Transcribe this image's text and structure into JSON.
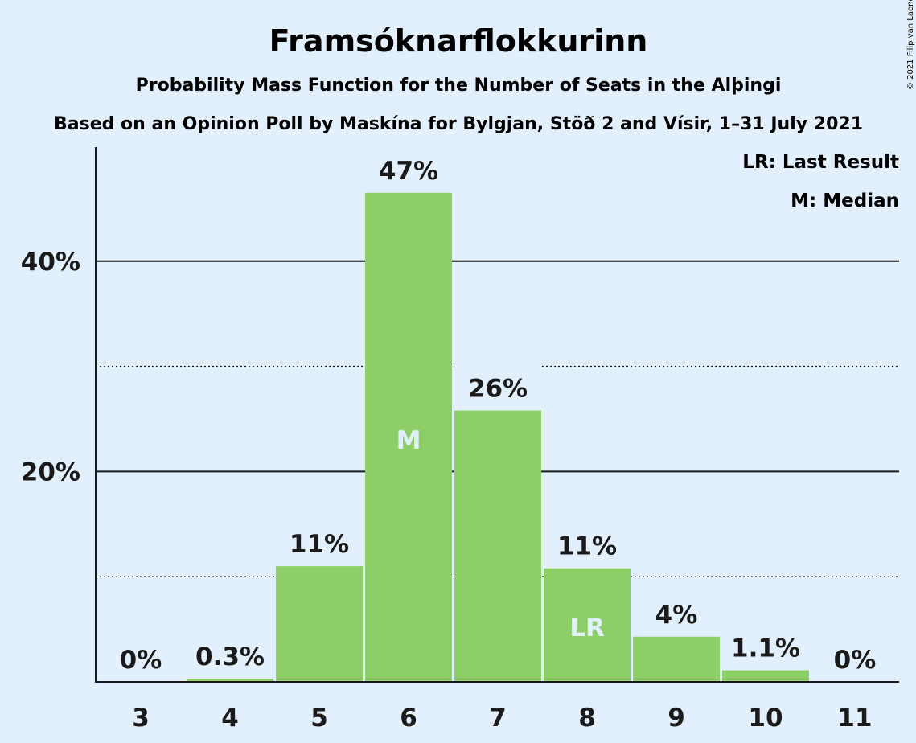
{
  "chart_data": {
    "type": "bar",
    "title": "Framsóknarflokkurinn",
    "subtitle": "Probability Mass Function for the Number of Seats in the Alþingi",
    "subtitle2": "Based on an Opinion Poll by Maskína for Bylgjan, Stöð 2 and Vísir, 1–31 July 2021",
    "copyright": "© 2021 Filip van Laenen",
    "legend": [
      "LR: Last Result",
      "M: Median"
    ],
    "legend_position": "top-right",
    "categories": [
      "3",
      "4",
      "5",
      "6",
      "7",
      "8",
      "9",
      "10",
      "11"
    ],
    "values": [
      0,
      0.3,
      11,
      46.5,
      25.8,
      10.8,
      4.3,
      1.1,
      0
    ],
    "data_labels": [
      "0%",
      "0.3%",
      "11%",
      "47%",
      "26%",
      "11%",
      "4%",
      "1.1%",
      "0%"
    ],
    "bar_markers": [
      {
        "category": "6",
        "text": "M"
      },
      {
        "category": "8",
        "text": "LR"
      }
    ],
    "y_ticks": [
      {
        "value": 20,
        "label": "20%"
      },
      {
        "value": 40,
        "label": "40%"
      }
    ],
    "minor_gridlines": [
      10,
      30
    ],
    "ylim": [
      0,
      50
    ],
    "grid": true,
    "colors": {
      "bar": "#8dce66",
      "background": "#e2f0fd",
      "text": "#1a1a1a",
      "marker_text": "#e2f0fd"
    }
  }
}
